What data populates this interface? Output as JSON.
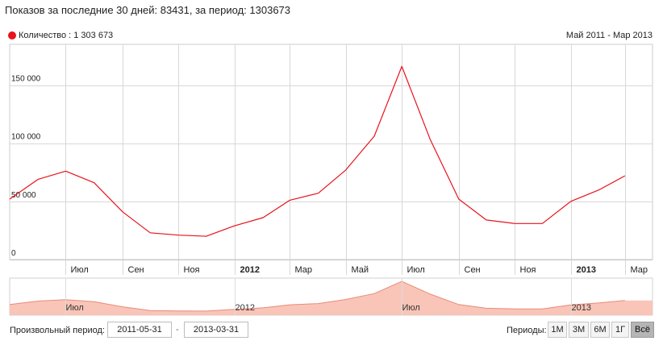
{
  "header": {
    "title": "Показов за последние 30 дней: 83431, за период: 1303673"
  },
  "legend": {
    "label": "Количество : 1 303 673",
    "color": "#e8121b"
  },
  "range_label": "Май 2011 - Мар 2013",
  "chart_data": {
    "type": "line",
    "series": [
      {
        "name": "Количество",
        "color": "#e8121b",
        "x": [
          "2011-05-01",
          "2011-06-01",
          "2011-07-01",
          "2011-08-01",
          "2011-09-01",
          "2011-10-01",
          "2011-11-01",
          "2011-12-01",
          "2012-01-01",
          "2012-02-01",
          "2012-03-01",
          "2012-04-01",
          "2012-05-01",
          "2012-06-01",
          "2012-07-01",
          "2012-08-01",
          "2012-09-01",
          "2012-10-01",
          "2012-11-01",
          "2012-12-01",
          "2013-01-01",
          "2013-02-01",
          "2013-03-01"
        ],
        "values": [
          52000,
          69000,
          76000,
          66000,
          41000,
          23000,
          21000,
          20000,
          29000,
          36000,
          51000,
          57000,
          77000,
          106000,
          166000,
          103000,
          52000,
          34000,
          31000,
          31000,
          50000,
          60000,
          72000
        ]
      }
    ],
    "x_tick_labels": [
      {
        "date": "2011-07-01",
        "label": "Июл",
        "bold": false
      },
      {
        "date": "2011-09-01",
        "label": "Сен",
        "bold": false
      },
      {
        "date": "2011-11-01",
        "label": "Ноя",
        "bold": false
      },
      {
        "date": "2012-01-01",
        "label": "2012",
        "bold": true
      },
      {
        "date": "2012-03-01",
        "label": "Мар",
        "bold": false
      },
      {
        "date": "2012-05-01",
        "label": "Май",
        "bold": false
      },
      {
        "date": "2012-07-01",
        "label": "Июл",
        "bold": false
      },
      {
        "date": "2012-09-01",
        "label": "Сен",
        "bold": false
      },
      {
        "date": "2012-11-01",
        "label": "Ноя",
        "bold": false
      },
      {
        "date": "2013-01-01",
        "label": "2013",
        "bold": true
      },
      {
        "date": "2013-03-01",
        "label": "Мар",
        "bold": false
      }
    ],
    "y_ticks": [
      {
        "value": 0,
        "label": "0"
      },
      {
        "value": 50000,
        "label": "50 000"
      },
      {
        "value": 100000,
        "label": "100 000"
      },
      {
        "value": 150000,
        "label": "150 000"
      }
    ],
    "ylim": [
      0,
      185000
    ],
    "xlim": [
      "2011-05-01",
      "2013-03-31"
    ],
    "grid": true,
    "navigator": {
      "fill_color": "#f9c5b8",
      "line_color": "#e98b7a",
      "labels": [
        {
          "date": "2011-07-01",
          "label": "Июл"
        },
        {
          "date": "2012-01-01",
          "label": "2012"
        },
        {
          "date": "2012-07-01",
          "label": "Июл"
        },
        {
          "date": "2013-01-01",
          "label": "2013"
        }
      ]
    }
  },
  "controls": {
    "custom_period_label": "Произвольный период:",
    "date_from": "2011-05-31",
    "date_to": "2013-03-31",
    "dash": "-",
    "periods_label": "Периоды:",
    "period_buttons": [
      {
        "label": "1М",
        "active": false
      },
      {
        "label": "3М",
        "active": false
      },
      {
        "label": "6М",
        "active": false
      },
      {
        "label": "1Г",
        "active": false
      },
      {
        "label": "Всё",
        "active": true
      }
    ]
  }
}
